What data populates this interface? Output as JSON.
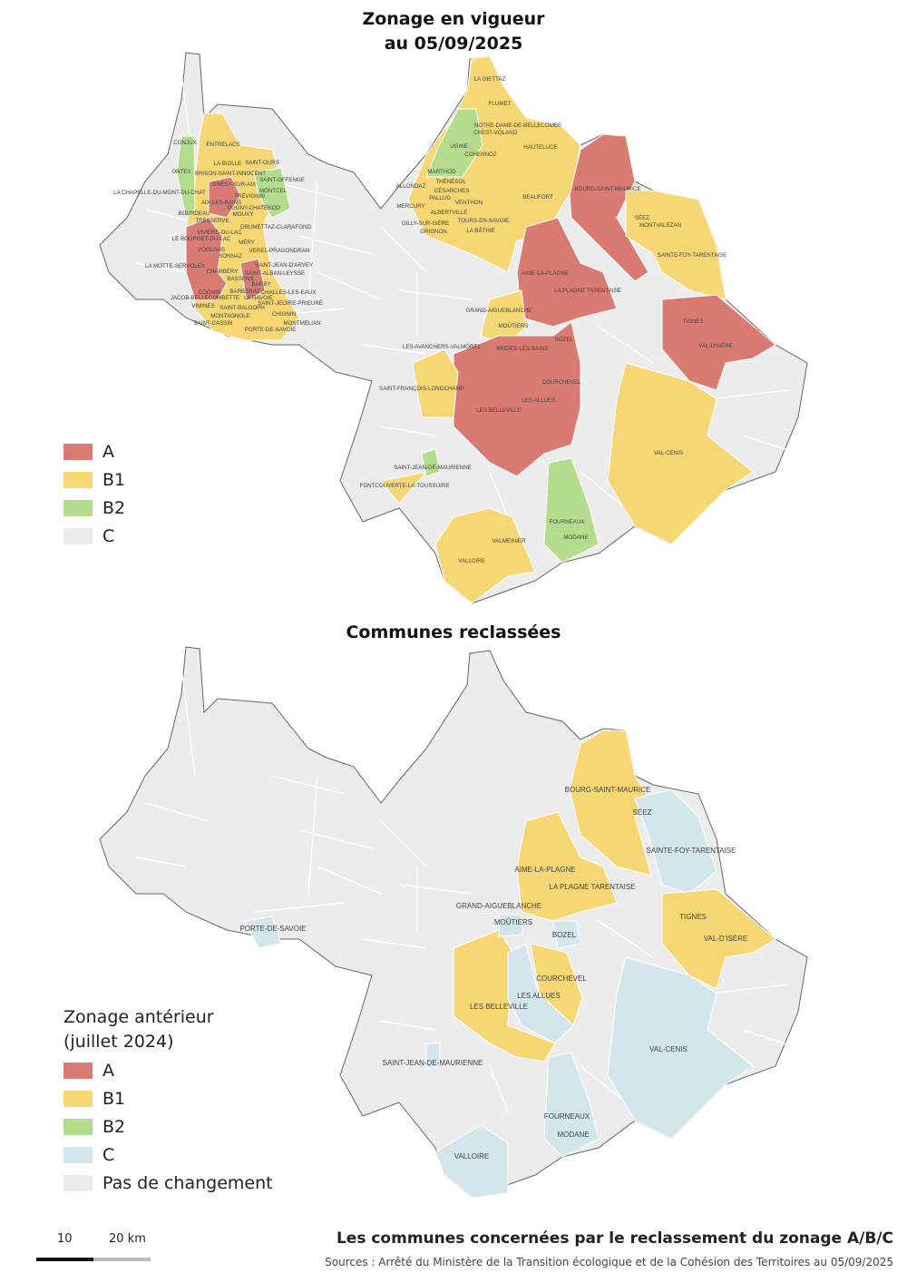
{
  "top_map": {
    "title_line1": "Zonage en vigueur",
    "title_line2": "au 05/09/2025",
    "legend": [
      {
        "label": "A",
        "color": "#d97b72"
      },
      {
        "label": "B1",
        "color": "#f7d774"
      },
      {
        "label": "B2",
        "color": "#b3dc8c"
      },
      {
        "label": "C",
        "color": "#ececec"
      }
    ],
    "communes": [
      "CONJUX",
      "ENTRELACS",
      "LA BIOLLE",
      "SAINT-OURS",
      "ONTEX",
      "BRISON-SAINT-INNOCENT",
      "SAINT-OFFENGE",
      "GRÉSY-SUR-AIX",
      "MONTCEL",
      "LA CHAPELLE-DU-MONT-DU-CHAT",
      "TRÉVIGNIN",
      "AIX-LES-BAINS",
      "PUGNY-CHATENOD",
      "BOURDEAU",
      "MOUXY",
      "TRESSERVE",
      "DRUMETTAZ-CLARAFOND",
      "VIVIERS-DU-LAC",
      "LE BOURGET-DU-LAC",
      "MÉRY",
      "VOGLANS",
      "VEREL-PRAGONDRAN",
      "SONNAZ",
      "LA MOTTE-SERVOLEX",
      "SAINT-JEAN-D'ARVEY",
      "CHAMBÉRY",
      "SAINT-ALBAN-LEYSSE",
      "BASSENS",
      "BARBY",
      "COGNIN",
      "BARBERAZ",
      "CHALLES-LES-EAUX",
      "JACOB-BELLECOMBETTE",
      "LA RAVOIE",
      "SAINT-JEOIRE-PRIEURÉ",
      "VIMINES",
      "SAINT-BALDOPH",
      "CHIGNIN",
      "MONTAGNOLE",
      "MONTMÉLIAN",
      "SAINT-CASSIN",
      "PORTE-DE-SAVOIE",
      "LA GIETTAZ",
      "FLUMET",
      "NOTRE-DAME-DE-BELLECOMBE",
      "CREST-VOLAND",
      "HAUTELUCE",
      "UGINE",
      "COHENNOZ",
      "MARTHOD",
      "THÉNÉSOL",
      "ALLONDAZ",
      "CÉSARCHES",
      "PALLUD",
      "BEAUFORT",
      "VENTHON",
      "MERCURY",
      "ALBERTVILLE",
      "TOURS-EN-SAVOIE",
      "GILLY-SUR-ISÈRE",
      "LA BÂTHIE",
      "GRIGNON",
      "BOURG-SAINT-MAURICE",
      "SÉEZ",
      "MONTVALEZAN",
      "SAINTE-FOY-TARENTAISE",
      "AIME-LA-PLAGNE",
      "LA PLAGNE TARENTAISE",
      "GRAND-AIGUEBLANCHE",
      "TIGNES",
      "MOÛTIERS",
      "LES AVANCHERS-VALMOREL",
      "BRIDES-LES-BAINS",
      "VAL-D'ISÈRE",
      "BOZEL",
      "COURCHEVEL",
      "SAINT-FRANÇOIS-LONGCHAMP",
      "LES ALLUES",
      "LES BELLEVILLE",
      "VAL-CENIS",
      "SAINT-JEAN-DE-MAURIENNE",
      "FONTCOUVERTE-LA-TOUSSUIRE",
      "FOURNEAUX",
      "MODANE",
      "VALMEINIER",
      "VALLOIRE"
    ]
  },
  "bottom_map": {
    "title": "Communes reclassées",
    "legend_title_line1": "Zonage antérieur",
    "legend_title_line2": "(juillet 2024)",
    "legend": [
      {
        "label": "A",
        "color": "#d97b72"
      },
      {
        "label": "B1",
        "color": "#f7d774"
      },
      {
        "label": "B2",
        "color": "#b3dc8c"
      },
      {
        "label": "C",
        "color": "#d3e6ec"
      },
      {
        "label": "Pas de changement",
        "color": "#ececec"
      }
    ],
    "communes": [
      "BOURG-SAINT-MAURICE",
      "SÉEZ",
      "SAINTE-FOY-TARENTAISE",
      "AIME-LA-PLAGNE",
      "LA PLAGNE TARENTAISE",
      "GRAND-AIGUEBLANCHE",
      "TIGNES",
      "MOÛTIERS",
      "BOZEL",
      "VAL-D'ISÈRE",
      "PORTE-DE-SAVOIE",
      "COURCHEVEL",
      "LES ALLUES",
      "LES BELLEVILLE",
      "VAL-CENIS",
      "SAINT-JEAN-DE-MAURIENNE",
      "FOURNEAUX",
      "MODANE",
      "VALLOIRE"
    ]
  },
  "scale": {
    "label_10": "10",
    "label_20": "20 km"
  },
  "footer": {
    "title": "Les communes concernées par le reclassement du zonage A/B/C",
    "sources": "Sources : Arrêté du Ministère de la Transition écologique et de la Cohésion des Territoires au 05/09/2025"
  }
}
